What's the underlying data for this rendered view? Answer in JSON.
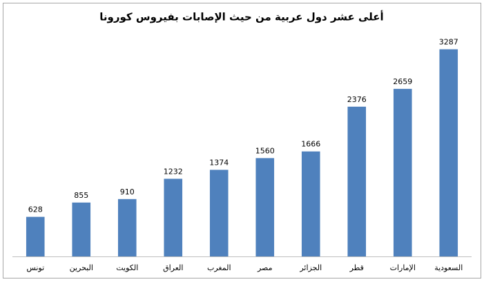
{
  "chart_data": {
    "type": "bar",
    "title": "أعلى عشر دول عربية من حيث الإصابات بفيروس كورونا",
    "categories": [
      "تونس",
      "البحرين",
      "الكويت",
      "العراق",
      "المغرب",
      "مصر",
      "الجزائر",
      "قطر",
      "الإمارات",
      "السعودية"
    ],
    "values": [
      628,
      855,
      910,
      1232,
      1374,
      1560,
      1666,
      2376,
      2659,
      3287
    ],
    "color": "#4f81bd",
    "ylim": [
      0,
      3500
    ],
    "data_labels": true
  }
}
